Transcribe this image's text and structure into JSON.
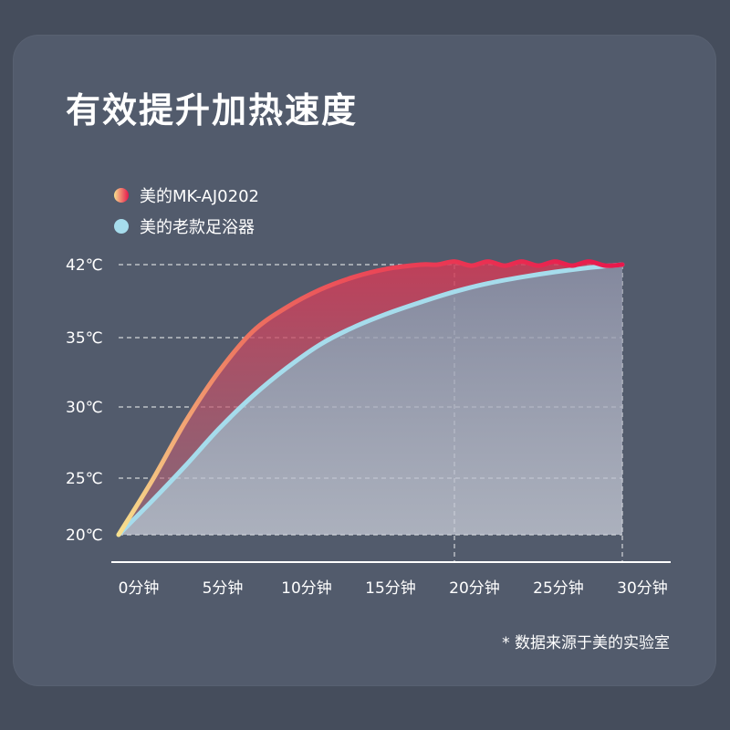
{
  "title": "有效提升加热速度",
  "note": "* 数据来源于美的实验室",
  "chart_data": {
    "type": "area",
    "title": "有效提升加热速度",
    "xlabel": "",
    "ylabel": "",
    "x_ticks": [
      {
        "value": 0,
        "label": "0分钟"
      },
      {
        "value": 5,
        "label": "5分钟"
      },
      {
        "value": 10,
        "label": "10分钟"
      },
      {
        "value": 15,
        "label": "15分钟"
      },
      {
        "value": 20,
        "label": "20分钟"
      },
      {
        "value": 25,
        "label": "25分钟"
      },
      {
        "value": 30,
        "label": "30分钟"
      }
    ],
    "y_ticks": [
      {
        "value": 20,
        "label": "20℃"
      },
      {
        "value": 25,
        "label": "25℃"
      },
      {
        "value": 30,
        "label": "30℃"
      },
      {
        "value": 35,
        "label": "35℃"
      },
      {
        "value": 42,
        "label": "42℃"
      }
    ],
    "xlim": [
      0,
      30
    ],
    "grid": "dashed",
    "legend_position": "top-left",
    "series": [
      {
        "name": "美的MK-AJ0202",
        "color_start": "#f7e08e",
        "color_end": "#e8174c",
        "x": [
          0,
          2,
          4,
          6,
          8,
          10,
          12,
          14,
          16,
          18,
          19,
          20,
          21,
          22,
          23,
          24,
          25,
          26,
          27,
          28,
          29,
          30
        ],
        "y": [
          20,
          24.8,
          29,
          32.6,
          35.6,
          37.9,
          39.6,
          40.8,
          41.6,
          42.0,
          42.0,
          42.3,
          41.9,
          42.3,
          41.9,
          42.3,
          41.9,
          42.3,
          41.9,
          42.3,
          41.9,
          42.0
        ]
      },
      {
        "name": "美的老款足浴器",
        "color": "#a6dcec",
        "x": [
          0,
          2,
          4,
          6,
          8,
          10,
          12,
          14,
          16,
          18,
          20,
          22,
          24,
          26,
          28,
          30
        ],
        "y": [
          20,
          23,
          25.9,
          28.5,
          30.8,
          32.8,
          34.5,
          36,
          37.3,
          38.4,
          39.4,
          40.2,
          40.8,
          41.3,
          41.7,
          42
        ]
      }
    ],
    "highlight_x": [
      20,
      30
    ]
  }
}
